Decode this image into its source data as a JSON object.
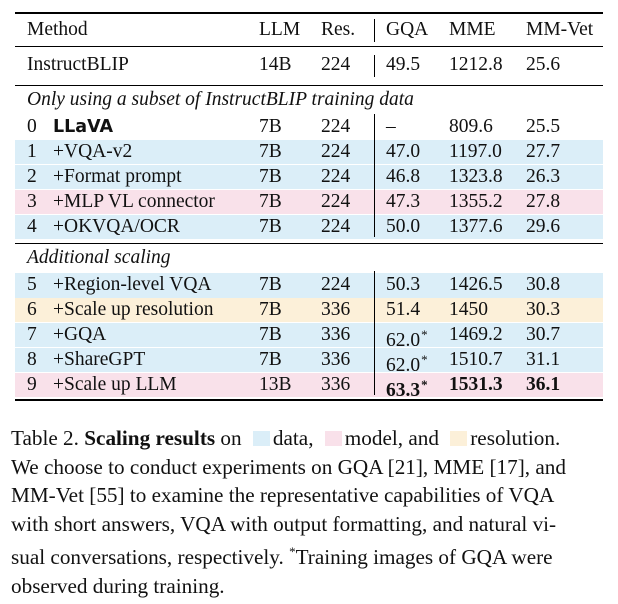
{
  "table": {
    "headers": {
      "method": "Method",
      "llm": "LLM",
      "res": "Res.",
      "gqa": "GQA",
      "mme": "MME",
      "mmvet": "MM-Vet"
    },
    "baseline": {
      "method": "InstructBLIP",
      "llm": "14B",
      "res": "224",
      "gqa": "49.5",
      "mme": "1212.8",
      "mmvet": "25.6"
    },
    "section1_title": "Only using a subset of InstructBLIP training data",
    "section1_rows": [
      {
        "idx": "0",
        "name": "LLaVA",
        "llm": "7B",
        "res": "224",
        "gqa": "–",
        "mme": "809.6",
        "mmvet": "25.5",
        "color": "none"
      },
      {
        "idx": "1",
        "name": "+VQA-v2",
        "llm": "7B",
        "res": "224",
        "gqa": "47.0",
        "mme": "1197.0",
        "mmvet": "27.7",
        "color": "blue"
      },
      {
        "idx": "2",
        "name": "+Format prompt",
        "llm": "7B",
        "res": "224",
        "gqa": "46.8",
        "mme": "1323.8",
        "mmvet": "26.3",
        "color": "blue"
      },
      {
        "idx": "3",
        "name": "+MLP VL connector",
        "llm": "7B",
        "res": "224",
        "gqa": "47.3",
        "mme": "1355.2",
        "mmvet": "27.8",
        "color": "pink"
      },
      {
        "idx": "4",
        "name": "+OKVQA/OCR",
        "llm": "7B",
        "res": "224",
        "gqa": "50.0",
        "mme": "1377.6",
        "mmvet": "29.6",
        "color": "blue"
      }
    ],
    "section2_title": "Additional scaling",
    "section2_rows": [
      {
        "idx": "5",
        "name": "+Region-level VQA",
        "llm": "7B",
        "res": "224",
        "gqa": "50.3",
        "mme": "1426.5",
        "mmvet": "30.8",
        "color": "blue"
      },
      {
        "idx": "6",
        "name": "+Scale up resolution",
        "llm": "7B",
        "res": "336",
        "gqa": "51.4",
        "mme": "1450",
        "mmvet": "30.3",
        "color": "orange"
      },
      {
        "idx": "7",
        "name": "+GQA",
        "llm": "7B",
        "res": "336",
        "gqa": "62.0",
        "gqa_mark": "*",
        "mme": "1469.2",
        "mmvet": "30.7",
        "color": "blue"
      },
      {
        "idx": "8",
        "name": "+ShareGPT",
        "llm": "7B",
        "res": "336",
        "gqa": "62.0",
        "gqa_mark": "*",
        "mme": "1510.7",
        "mmvet": "31.1",
        "color": "blue"
      },
      {
        "idx": "9",
        "name": "+Scale up LLM",
        "llm": "13B",
        "res": "336",
        "gqa": "63.3",
        "gqa_mark": "*",
        "mme": "1531.3",
        "mmvet": "36.1",
        "color": "pink",
        "bold_scores": true
      }
    ]
  },
  "caption": {
    "table_label": "Table 2.",
    "title": "Scaling results",
    "on": "on",
    "legend": [
      {
        "label": "data,",
        "color": "#dbeef8"
      },
      {
        "label": "model, and",
        "color": "#f9e1ea"
      },
      {
        "label": "resolution.",
        "color": "#fcf0d9"
      }
    ],
    "lines": [
      "We choose to conduct experiments on GQA [21], MME [17], and",
      "MM-Vet [55] to examine the representative capabilities of VQA",
      "with short answers, VQA with output formatting, and natural vi-",
      "sual conversations, respectively.",
      "observed during training."
    ],
    "footnote_mark": "*",
    "footnote_text": "Training images of GQA were"
  }
}
